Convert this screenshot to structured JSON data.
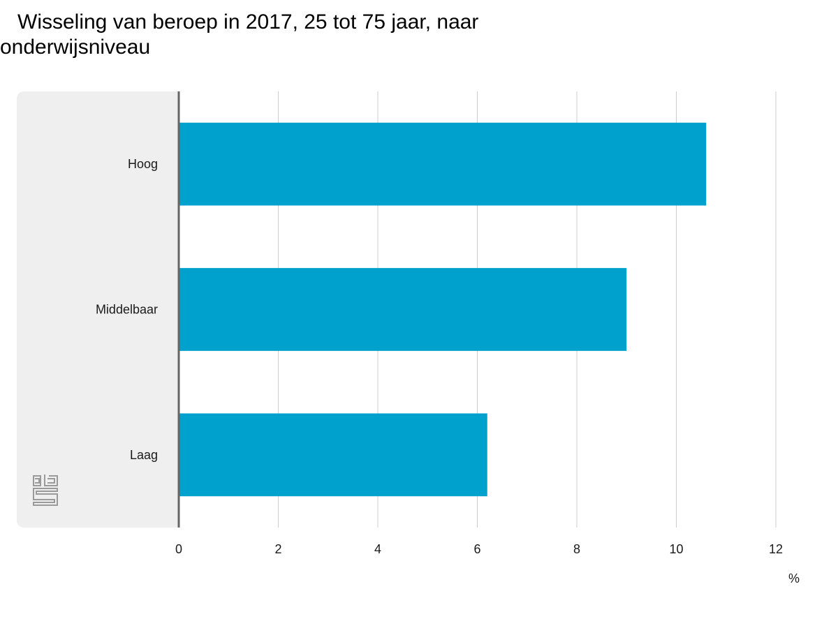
{
  "chart_data": {
    "type": "bar",
    "orientation": "horizontal",
    "title": "Wisseling van beroep in 2017, 25 tot 75 jaar, naar onderwijsniveau",
    "categories": [
      "Hoog",
      "Middelbaar",
      "Laag"
    ],
    "values": [
      10.6,
      9.0,
      6.2
    ],
    "xlim": [
      0,
      12
    ],
    "xticks": [
      0,
      2,
      4,
      6,
      8,
      10,
      12
    ],
    "unit": "%",
    "grid": true,
    "bar_color": "#00a1cd"
  },
  "logo": {
    "name": "cbs"
  }
}
